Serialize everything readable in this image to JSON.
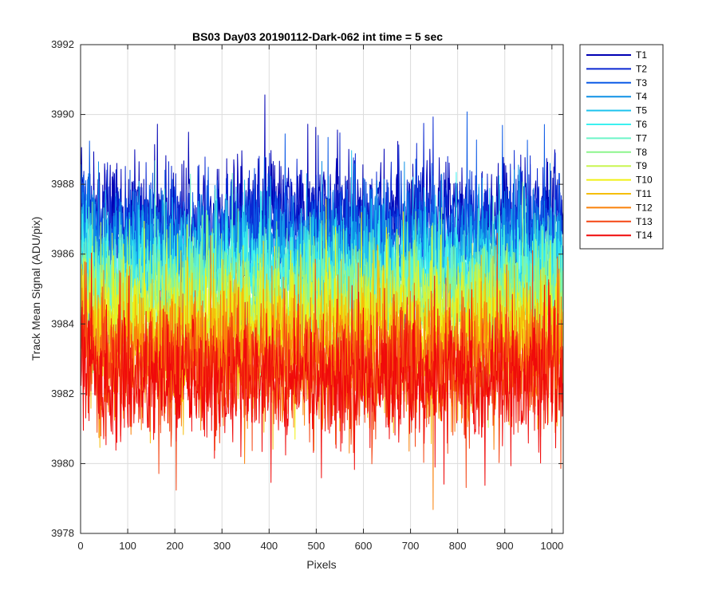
{
  "chart_data": {
    "type": "line",
    "title": "BS03 Day03 20190112-Dark-062 int time = 5 sec",
    "xlabel": "Pixels",
    "ylabel": "Track Mean Signal (ADU/pix)",
    "xlim": [
      0,
      1024
    ],
    "ylim": [
      3978,
      3992
    ],
    "xticks": [
      "0",
      "100",
      "200",
      "300",
      "400",
      "500",
      "600",
      "700",
      "800",
      "900",
      "1000"
    ],
    "yticks": [
      "3978",
      "3980",
      "3982",
      "3984",
      "3986",
      "3988",
      "3990",
      "3992"
    ],
    "grid": true,
    "legend_position": "outside-top-right",
    "series": [
      {
        "name": "T1",
        "color": "#0000b4",
        "mean": 3987.1,
        "noise": 0.8
      },
      {
        "name": "T2",
        "color": "#0a28d2",
        "mean": 3986.8,
        "noise": 0.8
      },
      {
        "name": "T3",
        "color": "#0c5ae6",
        "mean": 3986.4,
        "noise": 0.8
      },
      {
        "name": "T4",
        "color": "#0f91e6",
        "mean": 3986.0,
        "noise": 0.8
      },
      {
        "name": "T5",
        "color": "#1ec3ee",
        "mean": 3985.6,
        "noise": 0.8
      },
      {
        "name": "T6",
        "color": "#3cf0f0",
        "mean": 3985.3,
        "noise": 0.8
      },
      {
        "name": "T7",
        "color": "#6ef5c8",
        "mean": 3985.0,
        "noise": 0.8
      },
      {
        "name": "T8",
        "color": "#8cf58c",
        "mean": 3984.7,
        "noise": 0.8
      },
      {
        "name": "T9",
        "color": "#c8f550",
        "mean": 3984.3,
        "noise": 0.8
      },
      {
        "name": "T10",
        "color": "#f0f014",
        "mean": 3983.9,
        "noise": 0.8
      },
      {
        "name": "T11",
        "color": "#f5be0a",
        "mean": 3983.4,
        "noise": 0.9
      },
      {
        "name": "T12",
        "color": "#fa820a",
        "mean": 3983.0,
        "noise": 0.9
      },
      {
        "name": "T13",
        "color": "#f54614",
        "mean": 3982.7,
        "noise": 0.9
      },
      {
        "name": "T14",
        "color": "#f00a0a",
        "mean": 3982.4,
        "noise": 0.9
      }
    ]
  }
}
